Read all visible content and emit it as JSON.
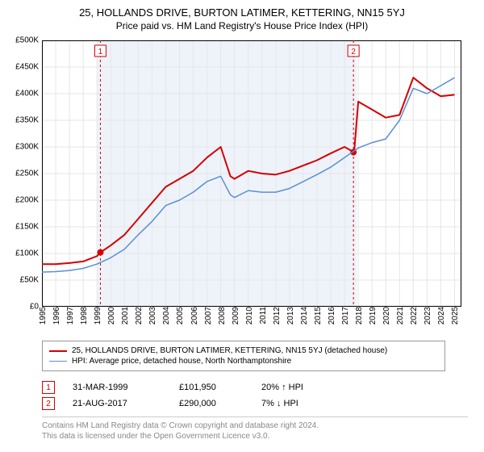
{
  "title": "25, HOLLANDS DRIVE, BURTON LATIMER, KETTERING, NN15 5YJ",
  "subtitle": "Price paid vs. HM Land Registry's House Price Index (HPI)",
  "chart": {
    "type": "line",
    "background_color": "#ffffff",
    "plot_border_color": "#000000",
    "grid_color": "#e6e6e6",
    "highlight_band_color": "#eef3fa",
    "highlight_band_xstart": 1999.0,
    "highlight_band_xend": 2017.9,
    "xlim": [
      1995,
      2025.5
    ],
    "ylim": [
      0,
      500000
    ],
    "ytick_step": 50000,
    "ytick_prefix": "£",
    "ytick_suffix": "K",
    "ytick_divisor": 1000,
    "xticks": [
      1995,
      1996,
      1997,
      1998,
      1999,
      2000,
      2001,
      2002,
      2003,
      2004,
      2005,
      2006,
      2007,
      2008,
      2009,
      2010,
      2011,
      2012,
      2013,
      2014,
      2015,
      2016,
      2017,
      2018,
      2019,
      2020,
      2021,
      2022,
      2023,
      2024,
      2025
    ],
    "label_fontsize": 10,
    "series": [
      {
        "name": "price_paid",
        "label": "25, HOLLANDS DRIVE, BURTON LATIMER, KETTERING, NN15 5YJ (detached house)",
        "color": "#d40000",
        "line_width": 2,
        "xs": [
          1995,
          1996,
          1997,
          1998,
          1999,
          1999.25,
          2000,
          2001,
          2002,
          2003,
          2004,
          2005,
          2006,
          2007,
          2008,
          2008.7,
          2009,
          2010,
          2011,
          2012,
          2013,
          2014,
          2015,
          2016,
          2017,
          2017.7,
          2018,
          2019,
          2020,
          2021,
          2022,
          2023,
          2024,
          2025
        ],
        "ys": [
          80000,
          80000,
          82000,
          85000,
          95000,
          101950,
          115000,
          135000,
          165000,
          195000,
          225000,
          240000,
          255000,
          280000,
          300000,
          245000,
          240000,
          255000,
          250000,
          248000,
          255000,
          265000,
          275000,
          288000,
          300000,
          290000,
          385000,
          370000,
          355000,
          360000,
          430000,
          410000,
          395000,
          398000
        ]
      },
      {
        "name": "hpi",
        "label": "HPI: Average price, detached house, North Northamptonshire",
        "color": "#5a8fd6",
        "line_width": 1.5,
        "xs": [
          1995,
          1996,
          1997,
          1998,
          1999,
          2000,
          2001,
          2002,
          2003,
          2004,
          2005,
          2006,
          2007,
          2008,
          2008.7,
          2009,
          2010,
          2011,
          2012,
          2013,
          2014,
          2015,
          2016,
          2017,
          2018,
          2019,
          2020,
          2021,
          2022,
          2023,
          2024,
          2025
        ],
        "ys": [
          65000,
          66000,
          68000,
          72000,
          80000,
          92000,
          108000,
          135000,
          160000,
          190000,
          200000,
          215000,
          235000,
          245000,
          210000,
          205000,
          218000,
          215000,
          215000,
          222000,
          235000,
          248000,
          262000,
          280000,
          298000,
          308000,
          315000,
          350000,
          410000,
          400000,
          415000,
          430000
        ]
      }
    ],
    "event_markers": [
      {
        "n": "1",
        "x": 1999.25,
        "y": 101950,
        "color": "#d40000",
        "line_dash": "3,3"
      },
      {
        "n": "2",
        "x": 2017.65,
        "y": 290000,
        "color": "#d40000",
        "line_dash": "3,3"
      }
    ]
  },
  "legend": {
    "items": [
      {
        "color": "#d40000",
        "width": 2,
        "label": "25, HOLLANDS DRIVE, BURTON LATIMER, KETTERING, NN15 5YJ (detached house)"
      },
      {
        "color": "#5a8fd6",
        "width": 1.5,
        "label": "HPI: Average price, detached house, North Northamptonshire"
      }
    ]
  },
  "events": [
    {
      "n": "1",
      "color": "#d40000",
      "date": "31-MAR-1999",
      "price": "£101,950",
      "delta": "20%",
      "dir": "↑",
      "vs": "HPI"
    },
    {
      "n": "2",
      "color": "#d40000",
      "date": "21-AUG-2017",
      "price": "£290,000",
      "delta": "7%",
      "dir": "↓",
      "vs": "HPI"
    }
  ],
  "footer": {
    "line1": "Contains HM Land Registry data © Crown copyright and database right 2024.",
    "line2": "This data is licensed under the Open Government Licence v3.0."
  }
}
